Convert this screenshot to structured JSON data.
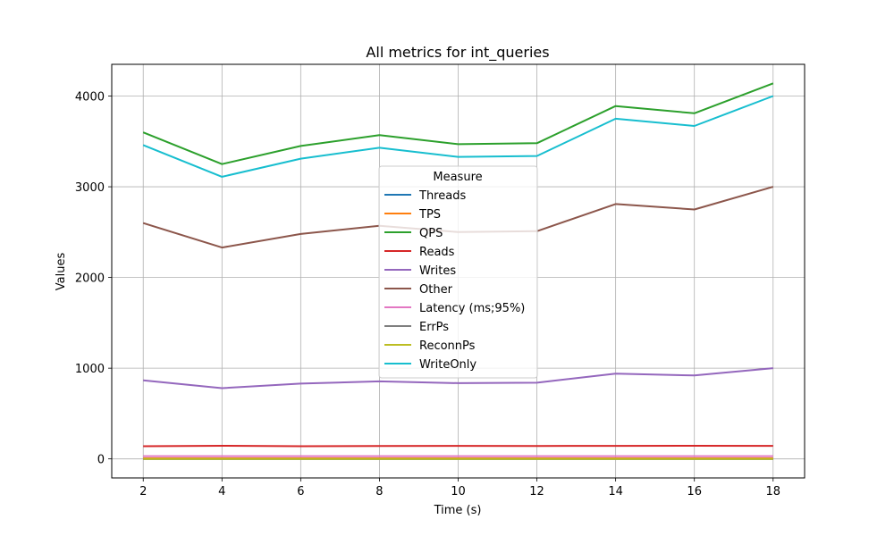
{
  "chart_data": {
    "type": "line",
    "title": "All metrics for int_queries",
    "xlabel": "Time (s)",
    "ylabel": "Values",
    "x": [
      2,
      4,
      6,
      8,
      10,
      12,
      14,
      16,
      18
    ],
    "xlim": [
      1.2,
      18.8
    ],
    "ylim": [
      -210,
      4350
    ],
    "xticks": [
      2,
      4,
      6,
      8,
      10,
      12,
      14,
      16,
      18
    ],
    "yticks": [
      0,
      1000,
      2000,
      3000,
      4000
    ],
    "grid": true,
    "legend": {
      "title": "Measure",
      "placement": "center"
    },
    "series": [
      {
        "name": "Threads",
        "color": "#1f77b4",
        "values": [
          0,
          0,
          0,
          0,
          0,
          0,
          0,
          0,
          0
        ]
      },
      {
        "name": "TPS",
        "color": "#ff7f0e",
        "values": [
          7,
          7,
          7,
          7,
          7,
          7,
          7,
          7,
          7
        ]
      },
      {
        "name": "QPS",
        "color": "#2ca02c",
        "values": [
          3600,
          3250,
          3450,
          3570,
          3470,
          3480,
          3890,
          3810,
          4140
        ]
      },
      {
        "name": "Reads",
        "color": "#d62728",
        "values": [
          140,
          145,
          140,
          143,
          144,
          143,
          144,
          145,
          144
        ]
      },
      {
        "name": "Writes",
        "color": "#9467bd",
        "values": [
          865,
          780,
          830,
          855,
          835,
          840,
          940,
          920,
          1000
        ]
      },
      {
        "name": "Other",
        "color": "#8c564b",
        "values": [
          2600,
          2330,
          2480,
          2570,
          2500,
          2510,
          2810,
          2750,
          3000
        ]
      },
      {
        "name": "Latency (ms;95%)",
        "color": "#e377c2",
        "values": [
          30,
          30,
          30,
          30,
          30,
          30,
          30,
          30,
          30
        ]
      },
      {
        "name": "ErrPs",
        "color": "#7f7f7f",
        "values": [
          0,
          0,
          0,
          0,
          0,
          0,
          0,
          0,
          0
        ]
      },
      {
        "name": "ReconnPs",
        "color": "#bcbd22",
        "values": [
          0,
          0,
          0,
          0,
          0,
          0,
          0,
          0,
          0
        ]
      },
      {
        "name": "WriteOnly",
        "color": "#17becf",
        "values": [
          3460,
          3110,
          3310,
          3430,
          3330,
          3340,
          3750,
          3670,
          4000
        ]
      }
    ]
  }
}
